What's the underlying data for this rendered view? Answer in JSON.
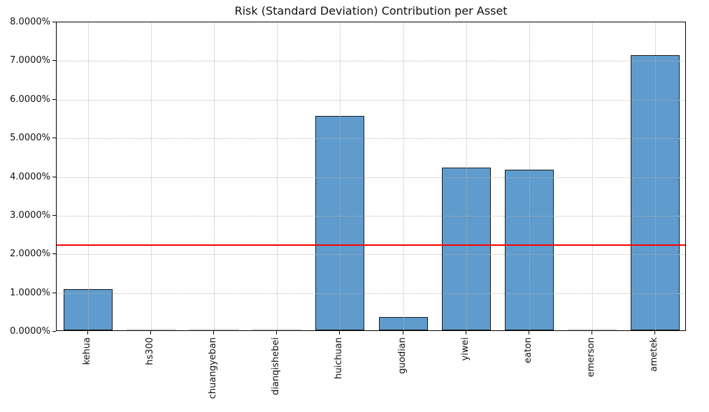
{
  "title": "Risk (Standard Deviation) Contribution per Asset",
  "chart_data": {
    "type": "bar",
    "title": "Risk (Standard Deviation) Contribution per Asset",
    "categories": [
      "kehua",
      "hs300",
      "chuangyeban",
      "dianqishebei",
      "huichuan",
      "guodian",
      "yiwei",
      "eaton",
      "emerson",
      "ametek"
    ],
    "values": [
      1.07,
      0.0,
      0.0,
      0.0,
      5.55,
      0.35,
      4.2,
      4.15,
      0.0,
      7.11
    ],
    "unit": "%",
    "xlabel": "",
    "ylabel": "",
    "ylim": [
      0,
      8
    ],
    "ytick_step": 1,
    "ytick_labels": [
      "0.0000%",
      "1.0000%",
      "2.0000%",
      "3.0000%",
      "4.0000%",
      "5.0000%",
      "6.0000%",
      "7.0000%",
      "8.0000%"
    ],
    "mean_line_value": 2.243,
    "grid": "dotted, horizontal and vertical",
    "legend_position": "none",
    "colors": {
      "bar_fill": "#5f9bcd",
      "bar_edge": "#1c1c1c",
      "zero_bar": "#d8d8d8",
      "mean_line": "#ff0000",
      "grid": "#b2b2b2",
      "text": "#111111",
      "background": "#ffffff"
    }
  }
}
